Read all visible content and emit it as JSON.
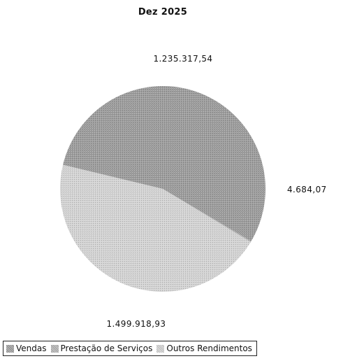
{
  "chart_data": {
    "type": "pie",
    "title": "Dez 2025",
    "slices": [
      {
        "name": "Vendas",
        "value": 1499918.93,
        "label": "1.499.918,93",
        "color": "#9a9a9a"
      },
      {
        "name": "Prestação de Serviços",
        "value": 4684.07,
        "label": "4.684,07",
        "color": "#b2b2b2"
      },
      {
        "name": "Outros Rendimentos",
        "value": 1235317.54,
        "label": "1.235.317,54",
        "color": "#d2d2d2"
      }
    ],
    "legend": "bottom-left"
  }
}
